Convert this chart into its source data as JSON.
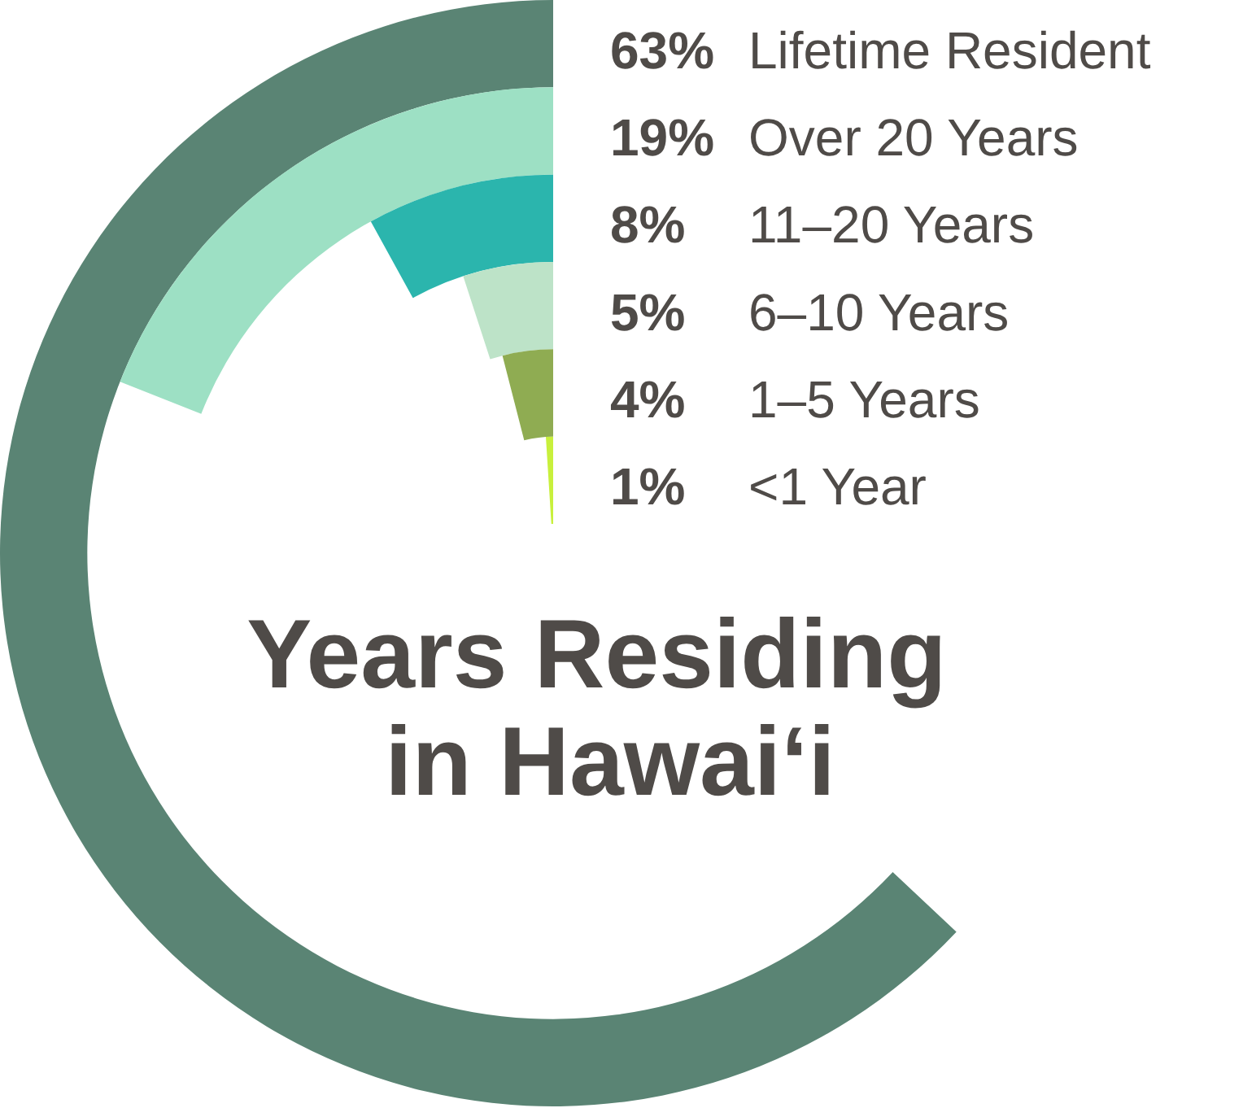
{
  "chart_data": {
    "type": "other",
    "title": "Years Residing in Hawai‘i",
    "categories": [
      "Lifetime Resident",
      "Over 20 Years",
      "11–20 Years",
      "6–10 Years",
      "1–5 Years",
      "<1 Year"
    ],
    "values": [
      63,
      19,
      8,
      5,
      4,
      1
    ],
    "colors": [
      "#5a8474",
      "#9de0c4",
      "#2bb5ad",
      "#bde3c8",
      "#8fac52",
      "#c8f03c"
    ],
    "value_labels": [
      "63%",
      "19%",
      "8%",
      "5%",
      "4%",
      "1%"
    ]
  }
}
